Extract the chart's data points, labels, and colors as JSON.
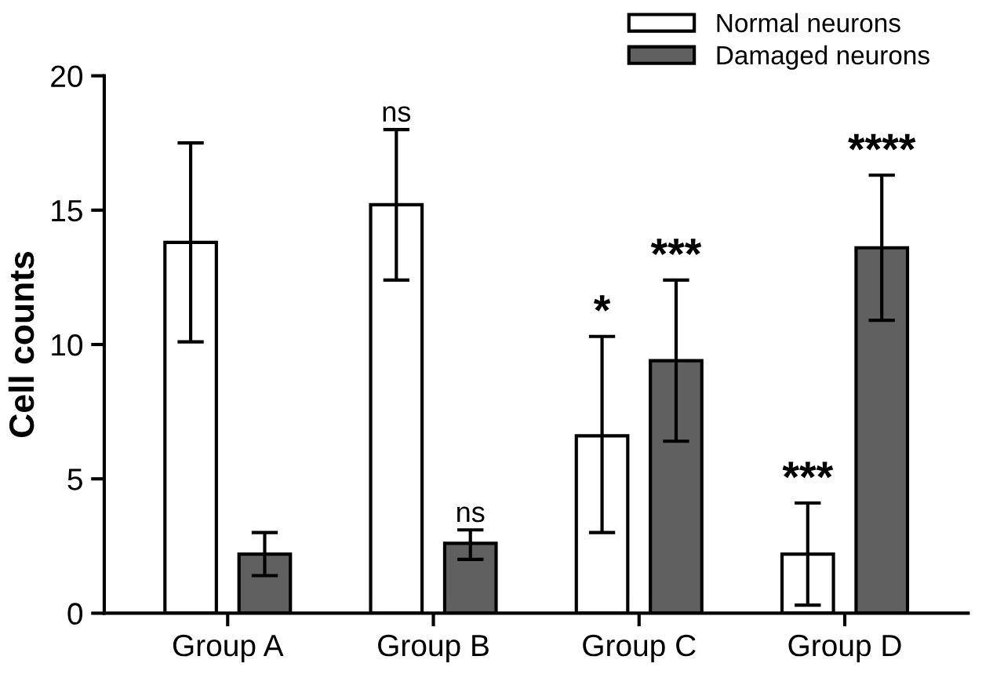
{
  "chart_data": {
    "type": "bar",
    "ylabel": "Cell counts",
    "categories": [
      "Group A",
      "Group B",
      "Group C",
      "Group D"
    ],
    "series": [
      {
        "name": "Normal neurons",
        "color": "#ffffff",
        "values": [
          13.8,
          15.2,
          6.6,
          2.2
        ],
        "errors": [
          [
            10.1,
            17.5
          ],
          [
            12.4,
            18.0
          ],
          [
            3.0,
            10.3
          ],
          [
            0.3,
            4.1
          ]
        ],
        "value_labels": [
          null,
          "ns",
          "*",
          "***"
        ]
      },
      {
        "name": "Damaged neurons",
        "color": "#606060",
        "values": [
          2.2,
          2.6,
          9.4,
          13.6
        ],
        "errors": [
          [
            1.4,
            3.0
          ],
          [
            2.0,
            3.1
          ],
          [
            6.4,
            12.4
          ],
          [
            10.9,
            16.3
          ]
        ],
        "value_labels": [
          null,
          "ns",
          "***",
          "****"
        ]
      }
    ],
    "ylim": [
      0,
      20
    ],
    "yticks": [
      0,
      5,
      10,
      15,
      20
    ],
    "grid": false,
    "legend": "top right"
  }
}
